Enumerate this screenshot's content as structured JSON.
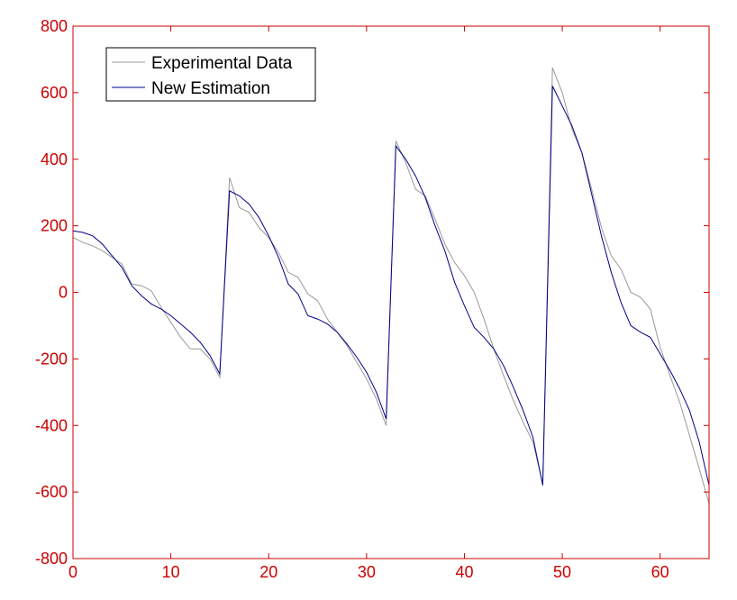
{
  "chart_data": {
    "type": "line",
    "title": "",
    "xlabel": "",
    "ylabel": "",
    "xlim": [
      0,
      65
    ],
    "ylim": [
      -800,
      800
    ],
    "xticks": [
      0,
      10,
      20,
      30,
      40,
      50,
      60
    ],
    "yticks": [
      -800,
      -600,
      -400,
      -200,
      0,
      200,
      400,
      600,
      800
    ],
    "grid": false,
    "legend_position": "top-left",
    "colors": {
      "axes": "#cc0000",
      "ticklabels": "#cc0000"
    },
    "series": [
      {
        "name": "Experimental Data",
        "color": "#999999",
        "x": [
          0,
          1,
          2,
          3,
          4,
          5,
          6,
          7,
          8,
          9,
          10,
          11,
          12,
          13,
          14,
          15,
          16,
          17,
          18,
          19,
          20,
          21,
          22,
          23,
          24,
          25,
          26,
          27,
          28,
          29,
          30,
          31,
          32,
          33,
          34,
          35,
          36,
          37,
          38,
          39,
          40,
          41,
          42,
          43,
          44,
          45,
          46,
          47,
          48,
          49,
          50,
          51,
          52,
          53,
          54,
          55,
          56,
          57,
          58,
          59,
          60,
          61,
          62,
          63,
          64,
          65
        ],
        "y": [
          165,
          150,
          140,
          125,
          105,
          85,
          25,
          20,
          5,
          -45,
          -90,
          -135,
          -170,
          -170,
          -200,
          -255,
          345,
          255,
          240,
          195,
          165,
          120,
          60,
          45,
          -5,
          -25,
          -80,
          -120,
          -160,
          -210,
          -260,
          -320,
          -400,
          455,
          390,
          310,
          290,
          220,
          145,
          90,
          50,
          0,
          -80,
          -170,
          -250,
          -325,
          -390,
          -450,
          -575,
          675,
          600,
          490,
          420,
          310,
          195,
          110,
          70,
          0,
          -15,
          -50,
          -165,
          -250,
          -330,
          -430,
          -530,
          -635
        ]
      },
      {
        "name": "New Estimation",
        "color": "#00008b",
        "x": [
          0,
          1,
          2,
          3,
          4,
          5,
          6,
          7,
          8,
          9,
          10,
          11,
          12,
          13,
          14,
          15,
          16,
          17,
          18,
          19,
          20,
          21,
          22,
          23,
          24,
          25,
          26,
          27,
          28,
          29,
          30,
          31,
          32,
          33,
          34,
          35,
          36,
          37,
          38,
          39,
          40,
          41,
          42,
          43,
          44,
          45,
          46,
          47,
          48,
          49,
          50,
          51,
          52,
          53,
          54,
          55,
          56,
          57,
          58,
          59,
          60,
          61,
          62,
          63,
          64,
          65
        ],
        "y": [
          185,
          180,
          170,
          145,
          110,
          75,
          20,
          -10,
          -35,
          -50,
          -70,
          -95,
          -120,
          -150,
          -190,
          -245,
          305,
          290,
          265,
          225,
          170,
          105,
          25,
          -5,
          -70,
          -80,
          -95,
          -120,
          -155,
          -195,
          -240,
          -300,
          -380,
          440,
          400,
          350,
          285,
          200,
          125,
          30,
          -40,
          -105,
          -135,
          -170,
          -220,
          -285,
          -355,
          -435,
          -580,
          620,
          560,
          500,
          420,
          295,
          170,
          60,
          -30,
          -100,
          -120,
          -135,
          -185,
          -235,
          -290,
          -355,
          -450,
          -580
        ]
      }
    ]
  }
}
